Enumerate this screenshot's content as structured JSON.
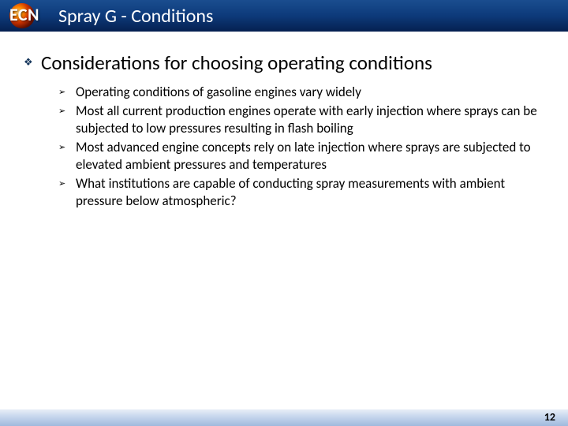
{
  "header": {
    "logo_label": "ECN",
    "title": "Spray G - Conditions"
  },
  "section": {
    "bullet": "❖",
    "heading": "Considerations for choosing operating conditions",
    "items": [
      {
        "bullet": "➢",
        "text": "Operating conditions of gasoline engines vary widely"
      },
      {
        "bullet": "➢",
        "text": "Most all current production engines operate with early injection where sprays can be subjected to low pressures resulting in flash boiling"
      },
      {
        "bullet": "➢",
        "text": "Most advanced engine concepts rely on late injection where sprays are subjected to elevated ambient pressures and temperatures"
      },
      {
        "bullet": "➢",
        "text": "What institutions are capable of conducting spray measurements with ambient pressure below atmospheric?"
      }
    ]
  },
  "footer": {
    "page_number": "12"
  },
  "colors": {
    "header_gradient_top": "#1a4d8f",
    "header_gradient_bottom": "#052050",
    "footer_gradient_top": "#e8eef7",
    "footer_gradient_bottom": "#9fb9dd",
    "diamond_bullet": "#16365c",
    "text": "#000000",
    "header_text": "#ffffff"
  }
}
